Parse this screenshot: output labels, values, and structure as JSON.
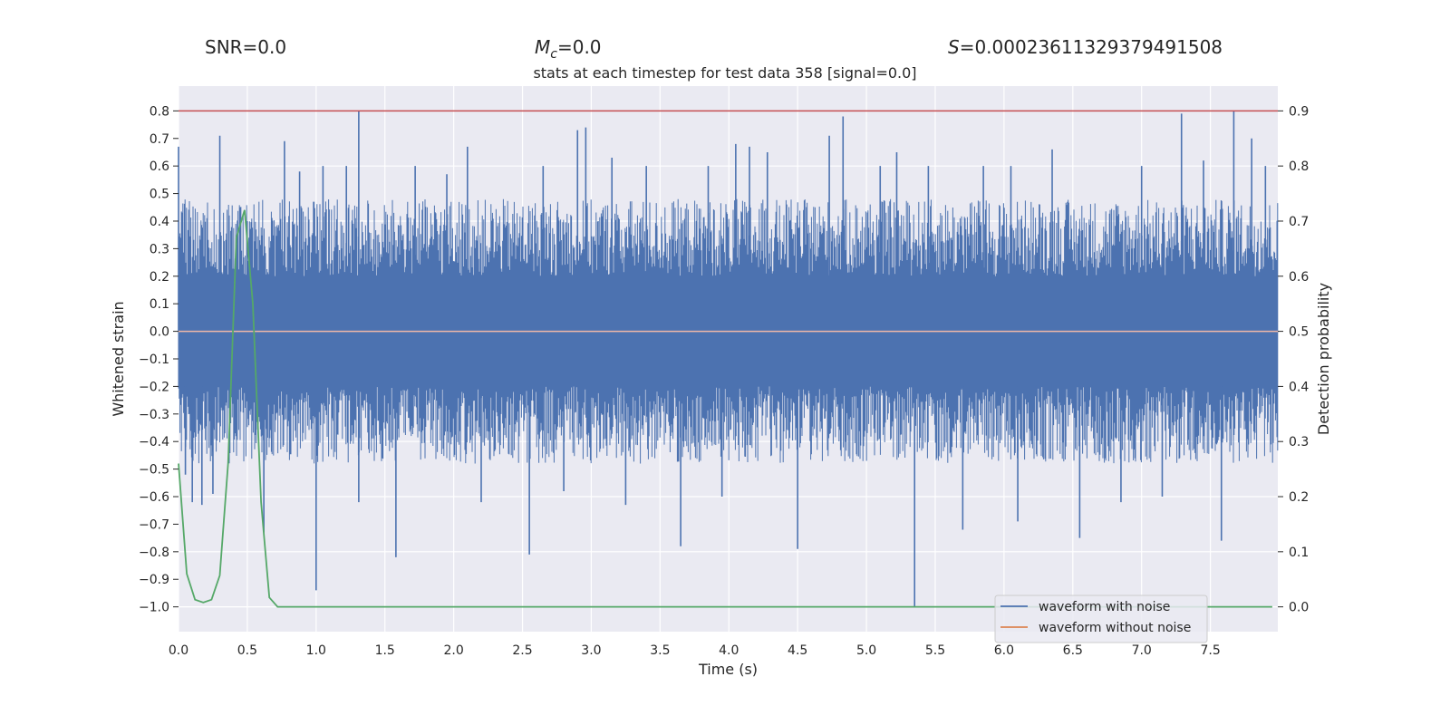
{
  "header": {
    "snr": "SNR=0.0",
    "mc_symbol": "M",
    "mc_sub": "c",
    "mc_value": "=0.0",
    "s_symbol": "S",
    "s_value": "=0.00023611329379491508"
  },
  "chart_data": {
    "type": "line",
    "title": "stats at each timestep for test data 358 [signal=0.0]",
    "xlabel": "Time (s)",
    "ylabel": "Whitened strain",
    "y2label": "Detection probability",
    "xlim": [
      0.0,
      7.99
    ],
    "ylim": [
      -1.09,
      0.89
    ],
    "y2lim": [
      -0.045,
      0.945
    ],
    "xticks": [
      "0.0",
      "0.5",
      "1.0",
      "1.5",
      "2.0",
      "2.5",
      "3.0",
      "3.5",
      "4.0",
      "4.5",
      "5.0",
      "5.5",
      "6.0",
      "6.5",
      "7.0",
      "7.5"
    ],
    "yticks": [
      "0.8",
      "0.7",
      "0.6",
      "0.5",
      "0.4",
      "0.3",
      "0.2",
      "0.1",
      "0.0",
      "−0.1",
      "−0.2",
      "−0.3",
      "−0.4",
      "−0.5",
      "−0.6",
      "−0.7",
      "−0.8",
      "−0.9",
      "−1.0"
    ],
    "y2ticks": [
      "0.9",
      "0.8",
      "0.7",
      "0.6",
      "0.5",
      "0.4",
      "0.3",
      "0.2",
      "0.1",
      "0.0"
    ],
    "grid": true,
    "legend_position": "bottom-right",
    "colors": {
      "background": "#eaeaf2",
      "grid": "#ffffff",
      "noisy": "#4c72b0",
      "clean": "#dd8452",
      "probability": "#55a868",
      "threshold": "#c44e52"
    },
    "threshold": 0.9,
    "series": [
      {
        "name": "waveform with noise",
        "axis": "left",
        "note_envelope": "dense noise, envelope approx -0.45..0.45",
        "spikes": [
          [
            0.0,
            0.67
          ],
          [
            0.05,
            -0.52
          ],
          [
            0.1,
            -0.62
          ],
          [
            0.17,
            -0.63
          ],
          [
            0.25,
            -0.59
          ],
          [
            0.3,
            0.71
          ],
          [
            0.45,
            0.45
          ],
          [
            0.62,
            -0.73
          ],
          [
            0.77,
            0.69
          ],
          [
            0.88,
            0.58
          ],
          [
            1.0,
            -0.94
          ],
          [
            1.05,
            0.6
          ],
          [
            1.22,
            0.6
          ],
          [
            1.31,
            0.8
          ],
          [
            1.31,
            -0.62
          ],
          [
            1.58,
            -0.82
          ],
          [
            1.72,
            0.6
          ],
          [
            1.95,
            0.57
          ],
          [
            2.1,
            0.67
          ],
          [
            2.2,
            -0.62
          ],
          [
            2.55,
            -0.81
          ],
          [
            2.65,
            0.6
          ],
          [
            2.8,
            -0.58
          ],
          [
            2.9,
            0.73
          ],
          [
            2.96,
            0.74
          ],
          [
            3.15,
            0.63
          ],
          [
            3.25,
            -0.63
          ],
          [
            3.4,
            0.6
          ],
          [
            3.47,
            0.02
          ],
          [
            3.65,
            -0.78
          ],
          [
            3.85,
            0.6
          ],
          [
            3.95,
            -0.6
          ],
          [
            4.05,
            0.68
          ],
          [
            4.15,
            0.67
          ],
          [
            4.28,
            0.65
          ],
          [
            4.5,
            -0.79
          ],
          [
            4.73,
            0.71
          ],
          [
            4.83,
            0.78
          ],
          [
            5.1,
            0.6
          ],
          [
            5.22,
            0.65
          ],
          [
            5.35,
            -1.0
          ],
          [
            5.45,
            0.6
          ],
          [
            5.7,
            -0.72
          ],
          [
            5.85,
            0.6
          ],
          [
            6.05,
            0.6
          ],
          [
            6.1,
            -0.69
          ],
          [
            6.35,
            0.66
          ],
          [
            6.55,
            -0.75
          ],
          [
            6.85,
            -0.62
          ],
          [
            7.0,
            0.6
          ],
          [
            7.15,
            -0.6
          ],
          [
            7.29,
            0.79
          ],
          [
            7.45,
            0.62
          ],
          [
            7.58,
            -0.76
          ],
          [
            7.67,
            0.8
          ],
          [
            7.8,
            0.7
          ],
          [
            7.9,
            0.6
          ]
        ]
      },
      {
        "name": "waveform without noise",
        "axis": "left",
        "value": 0.0
      },
      {
        "name": "detection probability",
        "axis": "right",
        "x": [
          0.0,
          0.06,
          0.12,
          0.18,
          0.24,
          0.3,
          0.36,
          0.42,
          0.48,
          0.54,
          0.6,
          0.66,
          0.72,
          0.78,
          1.0,
          2.0,
          3.0,
          4.0,
          5.0,
          6.0,
          7.0,
          7.95
        ],
        "y": [
          0.26,
          0.06,
          0.013,
          0.008,
          0.013,
          0.057,
          0.26,
          0.67,
          0.72,
          0.55,
          0.19,
          0.017,
          0.0,
          0.0,
          0.0,
          0.0,
          0.0,
          0.0,
          0.0,
          0.0,
          0.0,
          0.0
        ]
      }
    ]
  }
}
